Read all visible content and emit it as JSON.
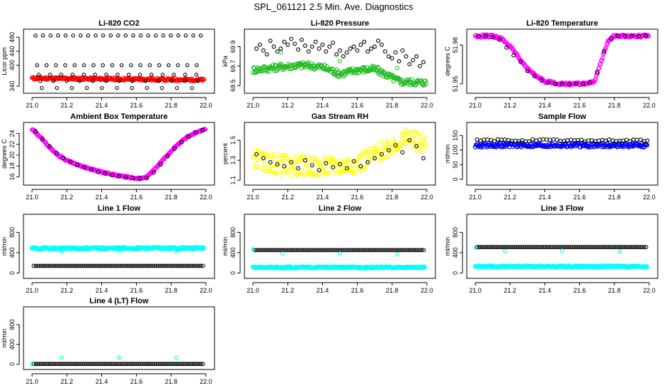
{
  "figure": {
    "title": "SPL_061121  2.5 Min. Ave. Diagnostics"
  },
  "colors": {
    "red": "#ff0000",
    "green": "#22bb22",
    "magenta": "#ff00ff",
    "yellow": "#ffff00",
    "blue": "#0000ff",
    "cyan": "#00ffff",
    "black": "#000000"
  },
  "chart_data": [
    {
      "type": "scatter",
      "title": "Li-820 CO2",
      "ylabel": "Licor ppm",
      "xlim": [
        21.0,
        22.0
      ],
      "ylim": [
        328,
        495
      ],
      "xticks": [
        "21.0",
        "21.2",
        "21.4",
        "21.6",
        "21.8",
        "22.0"
      ],
      "yticks": [
        340,
        400,
        440,
        480
      ],
      "series": [
        {
          "color": "red",
          "style": "band",
          "segments": [
            [
              21.0,
              21.99,
              363,
              358
            ]
          ]
        },
        {
          "color": "black",
          "style": "pts",
          "y_levels": [
            485,
            400,
            373,
            355,
            335
          ],
          "start": 21.02,
          "end": 21.99,
          "step": 0.027
        }
      ]
    },
    {
      "type": "scatter",
      "title": "Li-820 Pressure",
      "ylabel": "kPa",
      "xlim": [
        21.0,
        22.0
      ],
      "ylim": [
        69.45,
        70.05
      ],
      "xticks": [
        "21.0",
        "21.2",
        "21.4",
        "21.6",
        "21.8",
        "22.0"
      ],
      "yticks": [
        69.5,
        69.7,
        69.9
      ],
      "series": [
        {
          "color": "green",
          "style": "band",
          "x": [
            21.0,
            21.2,
            21.3,
            21.4,
            21.5,
            21.6,
            21.7,
            21.8,
            21.85,
            22.0
          ],
          "y": [
            69.66,
            69.7,
            69.71,
            69.69,
            69.62,
            69.66,
            69.67,
            69.58,
            69.54,
            69.53
          ],
          "width": 0.07
        },
        {
          "color": "black",
          "style": "pts",
          "x": [
            21.02,
            21.04,
            21.06,
            21.08,
            21.1,
            21.12,
            21.14,
            21.16,
            21.18,
            21.2,
            21.22,
            21.24,
            21.26,
            21.28,
            21.3,
            21.32,
            21.34,
            21.36,
            21.38,
            21.4,
            21.42,
            21.44,
            21.46,
            21.48,
            21.5,
            21.52,
            21.54,
            21.56,
            21.58,
            21.6,
            21.62,
            21.64,
            21.66,
            21.68,
            21.7,
            21.72,
            21.74,
            21.76,
            21.78,
            21.8,
            21.82,
            21.84,
            21.86,
            21.88,
            21.9,
            21.92,
            21.94,
            21.96,
            21.98
          ],
          "y": [
            69.88,
            69.92,
            69.86,
            69.82,
            69.96,
            69.9,
            69.85,
            69.88,
            69.95,
            69.92,
            69.98,
            69.93,
            69.87,
            69.97,
            69.91,
            69.85,
            69.9,
            69.95,
            69.88,
            69.92,
            69.85,
            69.9,
            69.94,
            69.82,
            69.86,
            69.8,
            69.84,
            69.88,
            69.9,
            69.86,
            69.92,
            69.95,
            69.85,
            69.88,
            69.9,
            69.96,
            69.92,
            69.85,
            69.8,
            69.78,
            69.84,
            69.75,
            69.86,
            69.8,
            69.72,
            69.76,
            69.8,
            69.7,
            69.74
          ]
        },
        {
          "color": "green",
          "style": "pts",
          "x": [
            21.16,
            21.5,
            21.83
          ],
          "y": [
            69.84,
            69.75,
            69.68
          ]
        }
      ]
    },
    {
      "type": "scatter",
      "title": "Li-820 Temperature",
      "ylabel": "degrees C",
      "xlim": [
        21.0,
        22.0
      ],
      "ylim": [
        51.945,
        51.99
      ],
      "xticks": [
        "21.0",
        "21.2",
        "21.4",
        "21.6",
        "21.8",
        "22.0"
      ],
      "yticks": [
        51.95,
        51.98
      ],
      "series": [
        {
          "color": "magenta",
          "style": "band",
          "x": [
            21.0,
            21.1,
            21.15,
            21.2,
            21.25,
            21.3,
            21.35,
            21.4,
            21.5,
            21.6,
            21.68,
            21.7,
            21.72,
            21.75,
            21.77,
            21.8,
            22.0
          ],
          "y": [
            51.987,
            51.987,
            51.985,
            51.979,
            51.97,
            51.962,
            51.956,
            51.952,
            51.95,
            51.95,
            51.951,
            51.957,
            51.966,
            51.978,
            51.984,
            51.987,
            51.987
          ],
          "width": 0.002
        },
        {
          "color": "black",
          "style": "pts",
          "x": [
            21.02,
            21.06,
            21.1,
            21.14,
            21.18,
            21.22,
            21.26,
            21.3,
            21.34,
            21.38,
            21.42,
            21.46,
            21.5,
            21.54,
            21.58,
            21.62,
            21.66,
            21.7,
            21.74,
            21.78,
            21.82,
            21.86,
            21.9,
            21.94,
            21.98
          ],
          "y": [
            51.987,
            51.987,
            51.986,
            51.984,
            51.978,
            51.972,
            51.967,
            51.96,
            51.956,
            51.953,
            51.951,
            51.95,
            51.95,
            51.95,
            51.95,
            51.95,
            51.951,
            51.959,
            51.975,
            51.985,
            51.987,
            51.987,
            51.987,
            51.987,
            51.987
          ]
        }
      ]
    },
    {
      "type": "scatter",
      "title": "Ambient Box Temperature",
      "ylabel": "degrees C",
      "xlim": [
        21.0,
        22.0
      ],
      "ylim": [
        15.0,
        25.5
      ],
      "xticks": [
        "21.0",
        "21.2",
        "21.4",
        "21.6",
        "21.8",
        "22.0"
      ],
      "yticks": [
        16,
        18,
        20,
        22,
        24
      ],
      "series": [
        {
          "color": "magenta",
          "style": "band",
          "x": [
            21.0,
            21.05,
            21.1,
            21.15,
            21.2,
            21.3,
            21.4,
            21.5,
            21.6,
            21.65,
            21.7,
            21.75,
            21.8,
            21.85,
            21.9,
            21.95,
            22.0
          ],
          "y": [
            24.8,
            23.2,
            21.5,
            20.0,
            19.0,
            17.8,
            16.9,
            16.2,
            15.7,
            15.8,
            17.2,
            19.0,
            20.8,
            22.3,
            23.5,
            24.3,
            24.8
          ],
          "width": 0.3
        },
        {
          "color": "black",
          "style": "pts",
          "x": [
            21.02,
            21.06,
            21.1,
            21.14,
            21.18,
            21.22,
            21.26,
            21.3,
            21.34,
            21.38,
            21.42,
            21.46,
            21.5,
            21.54,
            21.58,
            21.62,
            21.66,
            21.7,
            21.74,
            21.78,
            21.82,
            21.86,
            21.9,
            21.94,
            21.98
          ],
          "y": [
            24.4,
            23.0,
            21.6,
            20.4,
            19.5,
            18.8,
            18.2,
            17.7,
            17.3,
            16.9,
            16.6,
            16.3,
            16.1,
            15.9,
            15.8,
            15.7,
            15.8,
            16.8,
            18.3,
            19.8,
            21.2,
            22.4,
            23.4,
            24.2,
            24.6
          ]
        }
      ]
    },
    {
      "type": "scatter",
      "title": "Gas Stream RH",
      "ylabel": "percent",
      "xlim": [
        21.0,
        22.0
      ],
      "ylim": [
        1.08,
        1.65
      ],
      "xticks": [
        "21.0",
        "21.2",
        "21.4",
        "21.6",
        "21.8",
        "22.0"
      ],
      "yticks": [
        1.1,
        1.3,
        1.5
      ],
      "series": [
        {
          "color": "yellow",
          "style": "band",
          "x": [
            21.0,
            21.1,
            21.2,
            21.3,
            21.4,
            21.5,
            21.6,
            21.7,
            21.8,
            21.9,
            22.0
          ],
          "y": [
            1.32,
            1.27,
            1.25,
            1.24,
            1.23,
            1.24,
            1.27,
            1.35,
            1.46,
            1.52,
            1.45
          ],
          "width": 0.2
        },
        {
          "color": "black",
          "style": "pts",
          "x": [
            21.02,
            21.06,
            21.1,
            21.14,
            21.18,
            21.22,
            21.26,
            21.3,
            21.34,
            21.38,
            21.42,
            21.46,
            21.5,
            21.54,
            21.58,
            21.62,
            21.66,
            21.7,
            21.74,
            21.78,
            21.82,
            21.86,
            21.9,
            21.94,
            21.98
          ],
          "y": [
            1.36,
            1.32,
            1.28,
            1.26,
            1.24,
            1.28,
            1.22,
            1.3,
            1.25,
            1.2,
            1.27,
            1.23,
            1.26,
            1.22,
            1.29,
            1.24,
            1.28,
            1.32,
            1.36,
            1.4,
            1.45,
            1.38,
            1.5,
            1.44,
            1.32
          ]
        }
      ]
    },
    {
      "type": "scatter",
      "title": "Sample Flow",
      "ylabel": "ml/min",
      "xlim": [
        21.0,
        22.0
      ],
      "ylim": [
        -10,
        185
      ],
      "xticks": [
        "21.0",
        "21.2",
        "21.4",
        "21.6",
        "21.8",
        "22.0"
      ],
      "yticks": [
        0,
        50,
        100,
        150
      ],
      "series": [
        {
          "color": "blue",
          "style": "band",
          "segments": [
            [
              21.0,
              21.99,
              117,
              117
            ]
          ],
          "width": 14
        },
        {
          "color": "black",
          "style": "pts",
          "start": 21.01,
          "end": 21.99,
          "step": 0.02,
          "y": 133,
          "jitter": 4
        }
      ]
    },
    {
      "type": "scatter",
      "title": "Line 1 Flow",
      "ylabel": "ml/min",
      "xlim": [
        21.0,
        22.0
      ],
      "ylim": [
        -50,
        1100
      ],
      "xticks": [
        "21.0",
        "21.2",
        "21.4",
        "21.6",
        "21.8",
        "22.0"
      ],
      "yticks": [
        0,
        400,
        800
      ],
      "series": [
        {
          "color": "cyan",
          "style": "band",
          "segments": [
            [
              21.0,
              21.99,
              485,
              490
            ]
          ],
          "width": 40
        },
        {
          "color": "black",
          "style": "pts",
          "start": 21.01,
          "end": 21.99,
          "step": 0.012,
          "y": 140,
          "jitter": 0
        },
        {
          "color": "cyan",
          "style": "pts",
          "x": [
            21.0,
            21.17,
            21.5,
            21.83
          ],
          "y": [
            500,
            420,
            430,
            415
          ]
        }
      ]
    },
    {
      "type": "scatter",
      "title": "Line 2 Flow",
      "ylabel": "ml/min",
      "xlim": [
        21.0,
        22.0
      ],
      "ylim": [
        -50,
        1100
      ],
      "xticks": [
        "21.0",
        "21.2",
        "21.4",
        "21.6",
        "21.8",
        "22.0"
      ],
      "yticks": [
        0,
        400,
        800
      ],
      "series": [
        {
          "color": "cyan",
          "style": "band",
          "segments": [
            [
              21.0,
              21.99,
              110,
              110
            ]
          ],
          "width": 30
        },
        {
          "color": "black",
          "style": "pts",
          "start": 21.01,
          "end": 21.99,
          "step": 0.012,
          "y": 450,
          "jitter": 0
        },
        {
          "color": "cyan",
          "style": "pts",
          "x": [
            21.0,
            21.17,
            21.5,
            21.83
          ],
          "y": [
            470,
            380,
            380,
            370
          ]
        }
      ]
    },
    {
      "type": "scatter",
      "title": "Line 3 Flow",
      "ylabel": "ml/min",
      "xlim": [
        21.0,
        22.0
      ],
      "ylim": [
        -50,
        1100
      ],
      "xticks": [
        "21.0",
        "21.2",
        "21.4",
        "21.6",
        "21.8",
        "22.0"
      ],
      "yticks": [
        0,
        400,
        800
      ],
      "series": [
        {
          "color": "cyan",
          "style": "band",
          "segments": [
            [
              21.0,
              21.99,
              130,
              130
            ]
          ],
          "width": 30
        },
        {
          "color": "black",
          "style": "pts",
          "start": 21.01,
          "end": 21.99,
          "step": 0.012,
          "y": 510,
          "jitter": 0
        },
        {
          "color": "cyan",
          "style": "pts",
          "x": [
            21.0,
            21.17,
            21.5,
            21.83
          ],
          "y": [
            500,
            430,
            440,
            420
          ]
        }
      ]
    },
    {
      "type": "scatter",
      "title": "Line 4 (LT) Flow",
      "ylabel": "ml/min",
      "xlim": [
        21.0,
        22.0
      ],
      "ylim": [
        -50,
        1100
      ],
      "xticks": [
        "21.0",
        "21.2",
        "21.4",
        "21.6",
        "21.8",
        "22.0"
      ],
      "yticks": [
        0,
        400,
        800
      ],
      "series": [
        {
          "color": "black",
          "style": "pts",
          "start": 21.01,
          "end": 21.99,
          "step": 0.012,
          "y": 5,
          "jitter": 0
        },
        {
          "color": "cyan",
          "style": "pts",
          "x": [
            21.0,
            21.17,
            21.5,
            21.83
          ],
          "y": [
            5,
            130,
            135,
            130
          ]
        }
      ]
    }
  ]
}
